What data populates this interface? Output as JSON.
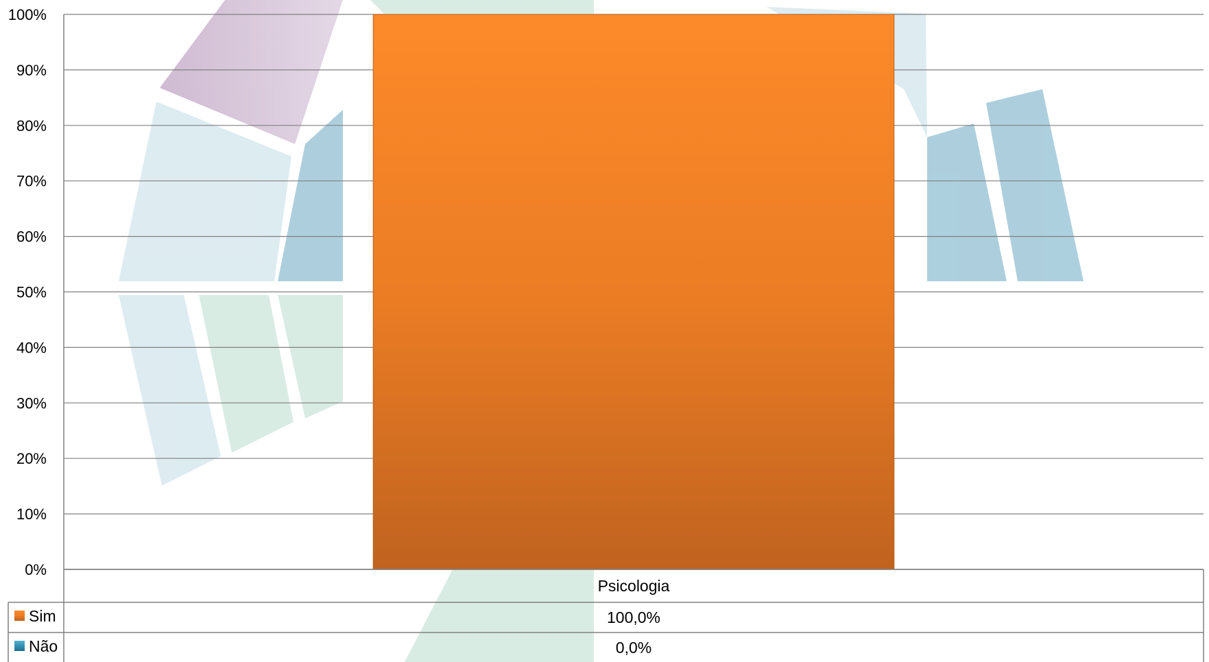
{
  "chart_data": {
    "type": "bar",
    "stacked": true,
    "categories": [
      "Psicologia"
    ],
    "series": [
      {
        "name": "Sim",
        "values": [
          100.0
        ],
        "color": "#f07f1e"
      },
      {
        "name": "Não",
        "values": [
          0.0
        ],
        "color": "#2e8fb5"
      }
    ],
    "ylim": [
      0,
      100
    ],
    "y_ticks": [
      "0%",
      "10%",
      "20%",
      "30%",
      "40%",
      "50%",
      "60%",
      "70%",
      "80%",
      "90%",
      "100%"
    ],
    "grid": true,
    "legend": "data-table",
    "data_table": {
      "header": "Psicologia",
      "rows": [
        {
          "label": "Sim",
          "value": "100,0%"
        },
        {
          "label": "Não",
          "value": "0,0%"
        }
      ]
    },
    "title": "",
    "xlabel": "",
    "ylabel": ""
  }
}
